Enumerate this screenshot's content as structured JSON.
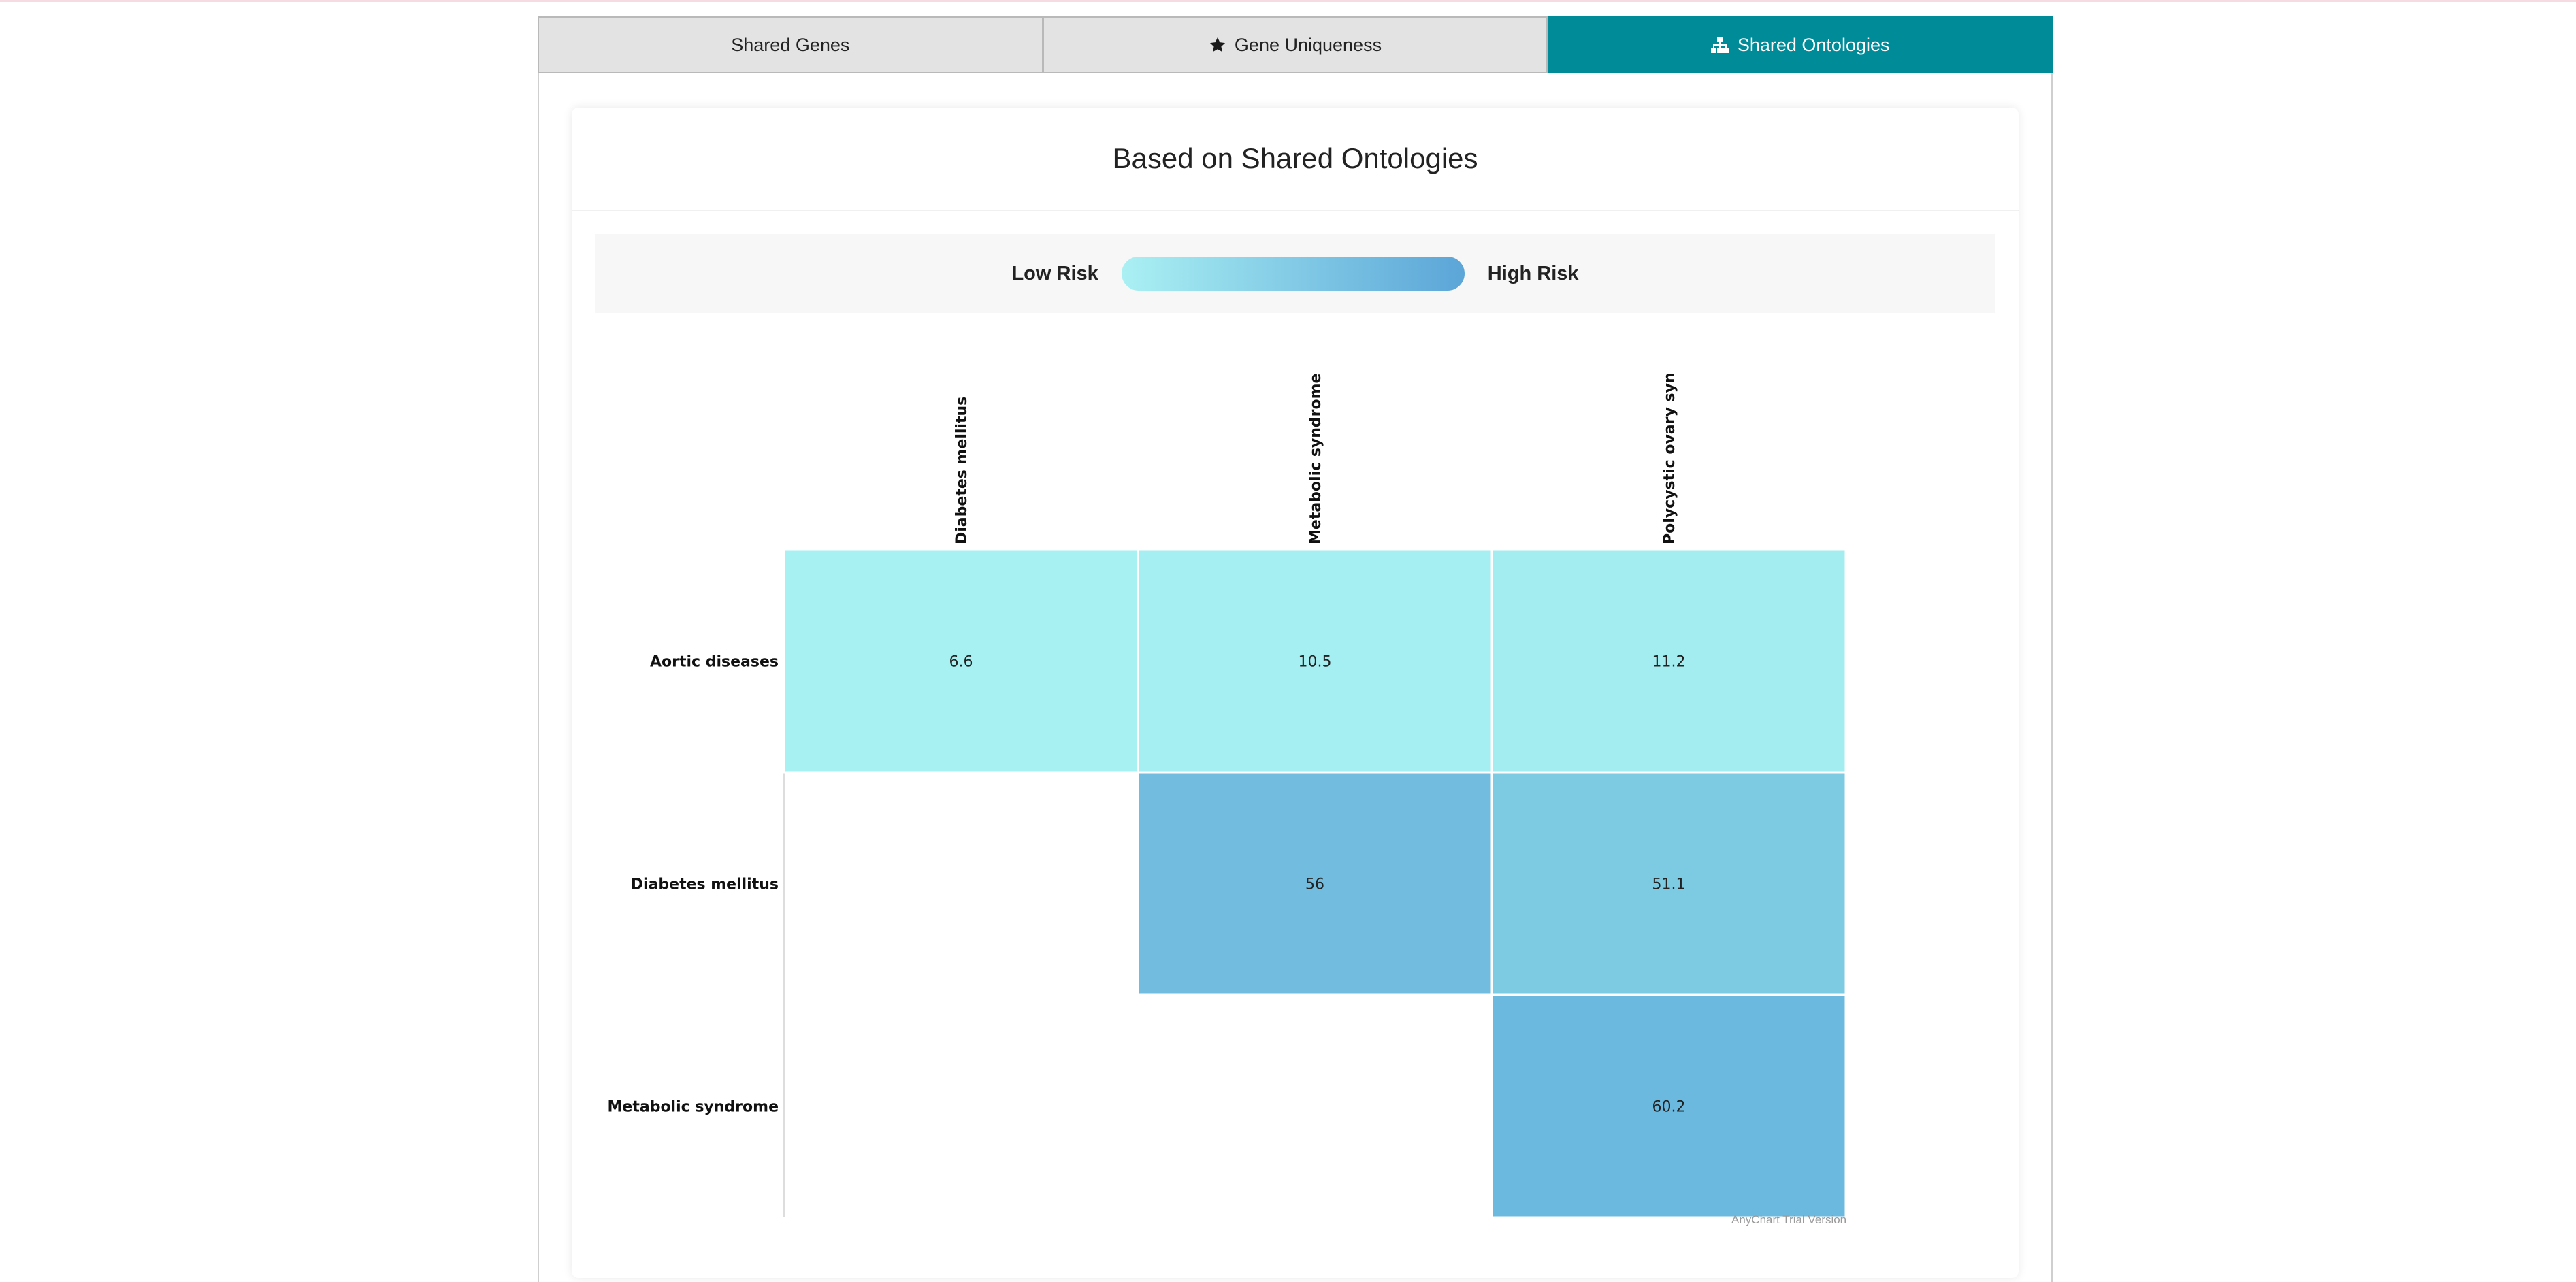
{
  "tabs": [
    {
      "label": "Shared Genes",
      "icon": "",
      "active": false
    },
    {
      "label": "Gene Uniqueness",
      "icon": "star-icon",
      "active": false
    },
    {
      "label": "Shared Ontologies",
      "icon": "sitemap-icon",
      "active": true
    }
  ],
  "card": {
    "title": "Based on Shared Ontologies"
  },
  "legend": {
    "low_label": "Low Risk",
    "high_label": "High Risk",
    "color_low": "#aaf0f3",
    "color_high": "#5ba5d8"
  },
  "chart_data": {
    "type": "heatmap",
    "columns": [
      "Diabetes mellitus",
      "Metabolic syndrome",
      "Polycystic ovary syn"
    ],
    "rows": [
      "Aortic diseases",
      "Diabetes mellitus",
      "Metabolic syndrome"
    ],
    "cells": [
      {
        "row": "Aortic diseases",
        "col": "Diabetes mellitus",
        "value": 6.6,
        "color": "#a7f1f3"
      },
      {
        "row": "Aortic diseases",
        "col": "Metabolic syndrome",
        "value": 10.5,
        "color": "#a5eef2"
      },
      {
        "row": "Aortic diseases",
        "col": "Polycystic ovary syn",
        "value": 11.2,
        "color": "#a3edf1"
      },
      {
        "row": "Diabetes mellitus",
        "col": "Metabolic syndrome",
        "value": 56,
        "color": "#71bcdf"
      },
      {
        "row": "Diabetes mellitus",
        "col": "Polycystic ovary syn",
        "value": 51.1,
        "color": "#7dcae3"
      },
      {
        "row": "Metabolic syndrome",
        "col": "Polycystic ovary syn",
        "value": 60.2,
        "color": "#6cb9e0"
      }
    ]
  },
  "watermark": "AnyChart Trial Version"
}
